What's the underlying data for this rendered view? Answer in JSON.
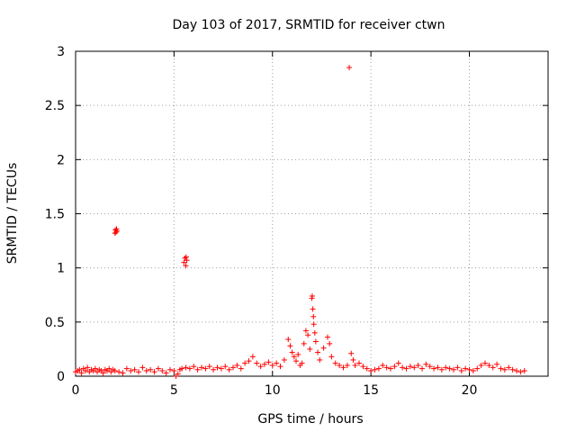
{
  "chart_data": {
    "type": "scatter",
    "title": "Day 103 of 2017, SRMTID for receiver ctwn",
    "xlabel": "GPS time / hours",
    "ylabel": "SRMTID / TECUs",
    "xlim": [
      0,
      24
    ],
    "ylim": [
      0,
      3
    ],
    "x_ticks": [
      0,
      5,
      10,
      15,
      20
    ],
    "y_ticks": [
      0,
      0.5,
      1,
      1.5,
      2,
      2.5,
      3
    ],
    "x_tick_labels": [
      "0",
      "5",
      "10",
      "15",
      "20"
    ],
    "y_tick_labels": [
      "0",
      "0.5",
      "1",
      "1.5",
      "2",
      "2.5",
      "3"
    ],
    "grid": true,
    "marker": "+",
    "color": "#ff0000",
    "series": [
      {
        "name": "SRMTID",
        "points": [
          [
            0.0,
            0.04
          ],
          [
            0.1,
            0.05
          ],
          [
            0.2,
            0.06
          ],
          [
            0.3,
            0.03
          ],
          [
            0.4,
            0.07
          ],
          [
            0.5,
            0.05
          ],
          [
            0.6,
            0.08
          ],
          [
            0.7,
            0.04
          ],
          [
            0.8,
            0.06
          ],
          [
            0.9,
            0.05
          ],
          [
            1.0,
            0.07
          ],
          [
            1.1,
            0.04
          ],
          [
            1.2,
            0.06
          ],
          [
            1.3,
            0.05
          ],
          [
            1.4,
            0.03
          ],
          [
            1.5,
            0.06
          ],
          [
            1.6,
            0.05
          ],
          [
            1.7,
            0.07
          ],
          [
            1.8,
            0.04
          ],
          [
            1.9,
            0.06
          ],
          [
            2.0,
            1.32
          ],
          [
            2.02,
            1.35
          ],
          [
            2.05,
            1.33
          ],
          [
            2.08,
            1.36
          ],
          [
            2.1,
            1.34
          ],
          [
            2.0,
            0.05
          ],
          [
            2.2,
            0.04
          ],
          [
            2.4,
            0.03
          ],
          [
            2.6,
            0.07
          ],
          [
            2.8,
            0.05
          ],
          [
            3.0,
            0.06
          ],
          [
            3.2,
            0.04
          ],
          [
            3.4,
            0.08
          ],
          [
            3.6,
            0.05
          ],
          [
            3.8,
            0.06
          ],
          [
            4.0,
            0.04
          ],
          [
            4.2,
            0.07
          ],
          [
            4.4,
            0.05
          ],
          [
            4.6,
            0.03
          ],
          [
            4.8,
            0.06
          ],
          [
            5.0,
            0.05
          ],
          [
            5.1,
            0.0
          ],
          [
            5.2,
            0.02
          ],
          [
            5.3,
            0.06
          ],
          [
            5.4,
            0.07
          ],
          [
            5.5,
            1.05
          ],
          [
            5.55,
            1.09
          ],
          [
            5.6,
            1.02
          ],
          [
            5.62,
            1.1
          ],
          [
            5.65,
            1.07
          ],
          [
            5.6,
            0.08
          ],
          [
            5.8,
            0.07
          ],
          [
            6.0,
            0.09
          ],
          [
            6.2,
            0.06
          ],
          [
            6.4,
            0.08
          ],
          [
            6.6,
            0.07
          ],
          [
            6.8,
            0.09
          ],
          [
            7.0,
            0.06
          ],
          [
            7.2,
            0.08
          ],
          [
            7.4,
            0.07
          ],
          [
            7.6,
            0.09
          ],
          [
            7.8,
            0.06
          ],
          [
            8.0,
            0.08
          ],
          [
            8.2,
            0.1
          ],
          [
            8.4,
            0.07
          ],
          [
            8.6,
            0.12
          ],
          [
            8.8,
            0.14
          ],
          [
            9.0,
            0.18
          ],
          [
            9.2,
            0.12
          ],
          [
            9.4,
            0.09
          ],
          [
            9.6,
            0.11
          ],
          [
            9.8,
            0.13
          ],
          [
            10.0,
            0.1
          ],
          [
            10.2,
            0.12
          ],
          [
            10.4,
            0.09
          ],
          [
            10.6,
            0.15
          ],
          [
            10.8,
            0.34
          ],
          [
            10.9,
            0.28
          ],
          [
            11.0,
            0.22
          ],
          [
            11.1,
            0.18
          ],
          [
            11.2,
            0.14
          ],
          [
            11.3,
            0.2
          ],
          [
            11.4,
            0.1
          ],
          [
            11.5,
            0.12
          ],
          [
            11.6,
            0.3
          ],
          [
            11.7,
            0.42
          ],
          [
            11.8,
            0.38
          ],
          [
            11.9,
            0.25
          ],
          [
            12.0,
            0.72
          ],
          [
            12.02,
            0.74
          ],
          [
            12.05,
            0.62
          ],
          [
            12.08,
            0.55
          ],
          [
            12.1,
            0.48
          ],
          [
            12.15,
            0.4
          ],
          [
            12.2,
            0.32
          ],
          [
            12.3,
            0.22
          ],
          [
            12.4,
            0.15
          ],
          [
            12.6,
            0.26
          ],
          [
            12.8,
            0.36
          ],
          [
            12.9,
            0.3
          ],
          [
            13.0,
            0.18
          ],
          [
            13.2,
            0.12
          ],
          [
            13.4,
            0.1
          ],
          [
            13.6,
            0.08
          ],
          [
            13.8,
            0.1
          ],
          [
            13.9,
            2.85
          ],
          [
            14.0,
            0.21
          ],
          [
            14.1,
            0.15
          ],
          [
            14.2,
            0.1
          ],
          [
            14.4,
            0.12
          ],
          [
            14.6,
            0.09
          ],
          [
            14.8,
            0.07
          ],
          [
            15.0,
            0.05
          ],
          [
            15.2,
            0.06
          ],
          [
            15.4,
            0.07
          ],
          [
            15.6,
            0.1
          ],
          [
            15.8,
            0.08
          ],
          [
            16.0,
            0.07
          ],
          [
            16.2,
            0.09
          ],
          [
            16.4,
            0.12
          ],
          [
            16.6,
            0.08
          ],
          [
            16.8,
            0.07
          ],
          [
            17.0,
            0.09
          ],
          [
            17.2,
            0.08
          ],
          [
            17.4,
            0.1
          ],
          [
            17.6,
            0.07
          ],
          [
            17.8,
            0.11
          ],
          [
            18.0,
            0.09
          ],
          [
            18.2,
            0.07
          ],
          [
            18.4,
            0.08
          ],
          [
            18.6,
            0.06
          ],
          [
            18.8,
            0.08
          ],
          [
            19.0,
            0.07
          ],
          [
            19.2,
            0.06
          ],
          [
            19.4,
            0.08
          ],
          [
            19.6,
            0.05
          ],
          [
            19.8,
            0.07
          ],
          [
            20.0,
            0.06
          ],
          [
            20.2,
            0.05
          ],
          [
            20.4,
            0.07
          ],
          [
            20.6,
            0.1
          ],
          [
            20.8,
            0.12
          ],
          [
            21.0,
            0.1
          ],
          [
            21.2,
            0.08
          ],
          [
            21.4,
            0.11
          ],
          [
            21.6,
            0.07
          ],
          [
            21.8,
            0.06
          ],
          [
            22.0,
            0.08
          ],
          [
            22.2,
            0.06
          ],
          [
            22.4,
            0.05
          ],
          [
            22.6,
            0.04
          ],
          [
            22.8,
            0.05
          ]
        ]
      }
    ]
  }
}
